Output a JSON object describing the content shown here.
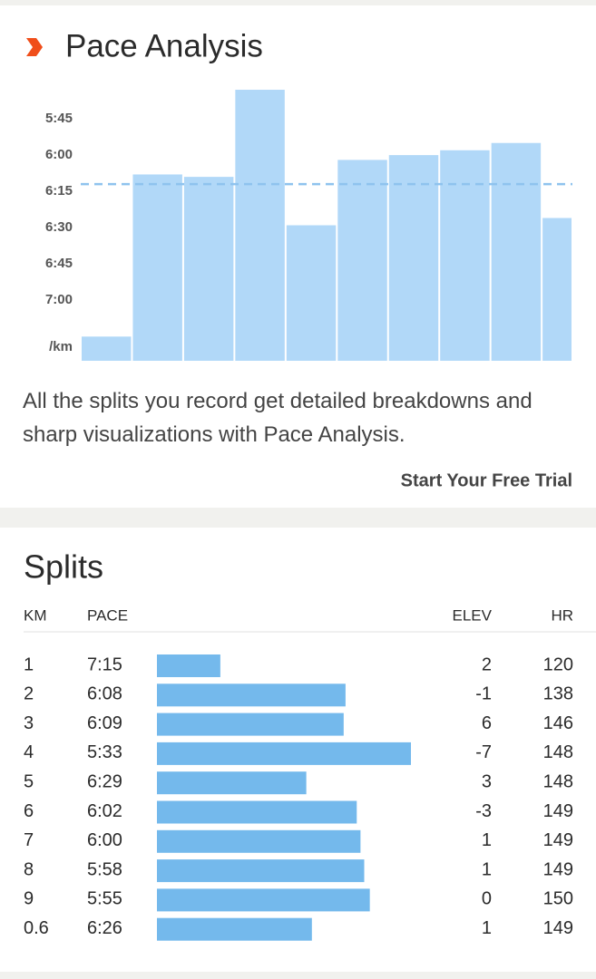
{
  "pace_card": {
    "title": "Pace Analysis",
    "description": "All the splits you record get detailed breakdowns and sharp visualizations with Pace Analysis.",
    "cta": "Start Your Free Trial"
  },
  "chart_data": {
    "type": "bar",
    "color": "#a9d4f7",
    "categories": [
      null,
      null,
      null,
      null,
      null,
      null,
      null,
      null,
      null,
      null
    ],
    "values": [
      435,
      368,
      369,
      333,
      389,
      362,
      360,
      358,
      355,
      386
    ],
    "ylim": [
      445,
      330
    ],
    "yticks": [
      {
        "value": 345,
        "label": "5:45"
      },
      {
        "value": 360,
        "label": "6:00"
      },
      {
        "value": 375,
        "label": "6:15"
      },
      {
        "value": 390,
        "label": "6:30"
      },
      {
        "value": 405,
        "label": "6:45"
      },
      {
        "value": 420,
        "label": "7:00"
      }
    ],
    "y_unit": "/km",
    "reference_line": 372
  },
  "splits": {
    "title": "Splits",
    "columns": [
      "KM",
      "PACE",
      "ELEV",
      "HR"
    ],
    "rows": [
      [
        "1",
        "7:15",
        "2",
        "120"
      ],
      [
        "2",
        "6:08",
        "-1",
        "138"
      ],
      [
        "3",
        "6:09",
        "6",
        "146"
      ],
      [
        "4",
        "5:33",
        "-7",
        "148"
      ],
      [
        "5",
        "6:29",
        "3",
        "148"
      ],
      [
        "6",
        "6:02",
        "-3",
        "149"
      ],
      [
        "7",
        "6:00",
        "1",
        "149"
      ],
      [
        "8",
        "5:58",
        "1",
        "149"
      ],
      [
        "9",
        "5:55",
        "0",
        "150"
      ],
      [
        "0.6",
        "6:26",
        "1",
        "149"
      ]
    ],
    "bar_color": "#74b9ec"
  }
}
